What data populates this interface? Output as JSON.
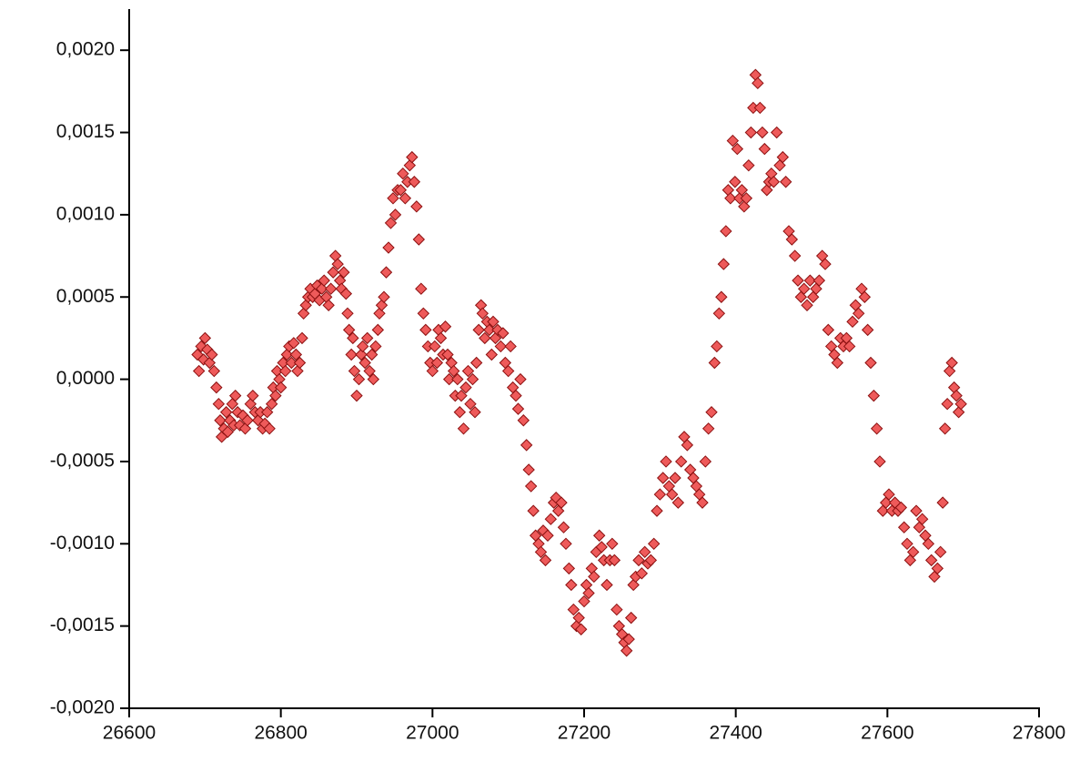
{
  "chart_data": {
    "type": "scatter",
    "marker": "diamond",
    "color": "#ee5a5a",
    "xlim": [
      26600,
      27800
    ],
    "ylim": [
      -0.002,
      0.00225
    ],
    "xticks": [
      26600,
      26800,
      27000,
      27200,
      27400,
      27600,
      27800
    ],
    "yticks": [
      {
        "value": -0.002,
        "label": "-0,0020"
      },
      {
        "value": -0.0015,
        "label": "-0,0015"
      },
      {
        "value": -0.001,
        "label": "-0,0010"
      },
      {
        "value": -0.0005,
        "label": "-0,0005"
      },
      {
        "value": 0,
        "label": "0,0000"
      },
      {
        "value": 0.0005,
        "label": "0,0005"
      },
      {
        "value": 0.001,
        "label": "0,0010"
      },
      {
        "value": 0.0015,
        "label": "0,0015"
      },
      {
        "value": 0.002,
        "label": "0,0020"
      }
    ],
    "grid": false,
    "x": [
      26690,
      26692,
      26695,
      26698,
      26700,
      26703,
      26706,
      26709,
      26712,
      26715,
      26718,
      26720,
      26722,
      26725,
      26728,
      26730,
      26733,
      26736,
      26738,
      26740,
      26743,
      26746,
      26750,
      26753,
      26756,
      26760,
      26763,
      26766,
      26770,
      26773,
      26776,
      26779,
      26782,
      26785,
      26788,
      26790,
      26793,
      26795,
      26798,
      26800,
      26803,
      26806,
      26808,
      26811,
      26814,
      26817,
      26820,
      26822,
      26825,
      26828,
      26830,
      26833,
      26836,
      26839,
      26842,
      26845,
      26848,
      26851,
      26854,
      26857,
      26860,
      26863,
      26866,
      26869,
      26872,
      26875,
      26878,
      26880,
      26883,
      26886,
      26888,
      26890,
      26893,
      26895,
      26897,
      26900,
      26903,
      26906,
      26908,
      26911,
      26914,
      26917,
      26920,
      26922,
      26925,
      26928,
      26930,
      26933,
      26936,
      26939,
      26942,
      26945,
      26948,
      26951,
      26954,
      26958,
      26961,
      26964,
      26967,
      26970,
      26973,
      26976,
      26979,
      26982,
      26985,
      26988,
      26991,
      26994,
      26997,
      27000,
      27003,
      27006,
      27008,
      27011,
      27014,
      27017,
      27020,
      27022,
      27025,
      27028,
      27030,
      27033,
      27036,
      27038,
      27041,
      27044,
      27047,
      27050,
      27053,
      27056,
      27058,
      27061,
      27064,
      27066,
      27069,
      27072,
      27075,
      27078,
      27080,
      27083,
      27086,
      27090,
      27093,
      27096,
      27100,
      27103,
      27106,
      27110,
      27113,
      27116,
      27120,
      27124,
      27127,
      27130,
      27133,
      27136,
      27140,
      27143,
      27146,
      27149,
      27152,
      27156,
      27160,
      27163,
      27166,
      27170,
      27173,
      27176,
      27180,
      27183,
      27186,
      27190,
      27193,
      27196,
      27200,
      27203,
      27206,
      27210,
      27213,
      27216,
      27220,
      27223,
      27226,
      27230,
      27234,
      27237,
      27240,
      27243,
      27246,
      27250,
      27253,
      27256,
      27259,
      27262,
      27265,
      27268,
      27272,
      27276,
      27280,
      27284,
      27288,
      27292,
      27296,
      27300,
      27304,
      27308,
      27312,
      27316,
      27320,
      27324,
      27328,
      27332,
      27336,
      27340,
      27344,
      27348,
      27352,
      27356,
      27360,
      27364,
      27368,
      27372,
      27375,
      27378,
      27381,
      27384,
      27387,
      27390,
      27393,
      27396,
      27399,
      27402,
      27405,
      27408,
      27411,
      27414,
      27417,
      27420,
      27423,
      27426,
      27429,
      27432,
      27435,
      27438,
      27441,
      27444,
      27447,
      27450,
      27454,
      27458,
      27462,
      27466,
      27470,
      27474,
      27478,
      27482,
      27486,
      27490,
      27494,
      27498,
      27502,
      27506,
      27510,
      27514,
      27518,
      27522,
      27526,
      27530,
      27534,
      27538,
      27542,
      27546,
      27550,
      27554,
      27558,
      27562,
      27566,
      27570,
      27574,
      27578,
      27582,
      27586,
      27590,
      27594,
      27598,
      27602,
      27606,
      27610,
      27614,
      27618,
      27622,
      27626,
      27630,
      27634,
      27638,
      27642,
      27646,
      27650,
      27654,
      27658,
      27662,
      27666,
      27670,
      27673,
      27676,
      27679,
      27682,
      27685,
      27688,
      27691,
      27694,
      27697
    ],
    "values": [
      0.00015,
      5e-05,
      0.0002,
      0.00012,
      0.00025,
      0.00018,
      0.0001,
      0.00015,
      5e-05,
      -5e-05,
      -0.00015,
      -0.00025,
      -0.00035,
      -0.0003,
      -0.0002,
      -0.00032,
      -0.00025,
      -0.00015,
      -0.00028,
      -0.0001,
      -0.0002,
      -0.00028,
      -0.00022,
      -0.0003,
      -0.00025,
      -0.00015,
      -0.0001,
      -0.0002,
      -0.00025,
      -0.0002,
      -0.0003,
      -0.00027,
      -0.0002,
      -0.0003,
      -0.00015,
      -5e-05,
      -0.0001,
      5e-05,
      0,
      -5e-05,
      0.0001,
      5e-05,
      0.00015,
      0.0002,
      0.0001,
      0.00022,
      0.00015,
      5e-05,
      0.0001,
      0.00025,
      0.0004,
      0.00045,
      0.0005,
      0.00055,
      0.0005,
      0.00052,
      0.00057,
      0.00048,
      0.00055,
      0.0006,
      0.0005,
      0.00045,
      0.00055,
      0.00065,
      0.00075,
      0.0007,
      0.0006,
      0.00055,
      0.00065,
      0.00052,
      0.0004,
      0.0003,
      0.00015,
      0.00025,
      5e-05,
      -0.0001,
      0,
      0.00015,
      0.0002,
      0.0001,
      0.00025,
      5e-05,
      0.00015,
      0,
      0.0002,
      0.0003,
      0.0004,
      0.00045,
      0.0005,
      0.00065,
      0.0008,
      0.00095,
      0.0011,
      0.001,
      0.00115,
      0.00115,
      0.00125,
      0.0011,
      0.0012,
      0.0013,
      0.00135,
      0.0012,
      0.00105,
      0.00085,
      0.00055,
      0.0004,
      0.0003,
      0.0002,
      0.0001,
      5e-05,
      0.0002,
      0.0001,
      0.0003,
      0.00025,
      0.00015,
      0.00032,
      0.00015,
      0,
      0.0001,
      5e-05,
      -0.0001,
      0,
      -0.0002,
      -0.0001,
      -0.0003,
      -5e-05,
      5e-05,
      -0.00015,
      0,
      -0.0002,
      0.0001,
      0.0003,
      0.00045,
      0.0004,
      0.00025,
      0.00035,
      0.0003,
      0.00015,
      0.00035,
      0.00025,
      0.0003,
      0.0002,
      0.00028,
      0.0001,
      5e-05,
      0.0002,
      -5e-05,
      -0.0001,
      -0.00018,
      0,
      -0.00025,
      -0.0004,
      -0.00055,
      -0.00065,
      -0.0008,
      -0.00095,
      -0.001,
      -0.00105,
      -0.00092,
      -0.0011,
      -0.00095,
      -0.00085,
      -0.00075,
      -0.00072,
      -0.0008,
      -0.00075,
      -0.0009,
      -0.001,
      -0.00115,
      -0.00125,
      -0.0014,
      -0.0015,
      -0.00145,
      -0.00152,
      -0.00135,
      -0.00125,
      -0.0013,
      -0.00115,
      -0.0012,
      -0.00105,
      -0.00095,
      -0.00102,
      -0.0011,
      -0.00125,
      -0.0011,
      -0.001,
      -0.0011,
      -0.0014,
      -0.0015,
      -0.00155,
      -0.0016,
      -0.00165,
      -0.00158,
      -0.00145,
      -0.00125,
      -0.0012,
      -0.0011,
      -0.00118,
      -0.00105,
      -0.00112,
      -0.0011,
      -0.001,
      -0.0008,
      -0.0007,
      -0.0006,
      -0.0005,
      -0.00065,
      -0.0007,
      -0.0006,
      -0.00075,
      -0.0005,
      -0.00035,
      -0.0004,
      -0.00055,
      -0.0006,
      -0.00065,
      -0.0007,
      -0.00075,
      -0.0005,
      -0.0003,
      -0.0002,
      0.0001,
      0.0002,
      0.0004,
      0.0005,
      0.0007,
      0.0009,
      0.00115,
      0.0011,
      0.00145,
      0.0012,
      0.0014,
      0.0011,
      0.00115,
      0.00105,
      0.0011,
      0.0013,
      0.0015,
      0.00165,
      0.00185,
      0.0018,
      0.00165,
      0.0015,
      0.0014,
      0.00115,
      0.0012,
      0.00125,
      0.0012,
      0.0015,
      0.0013,
      0.00135,
      0.0012,
      0.0009,
      0.00085,
      0.00075,
      0.0006,
      0.0005,
      0.00055,
      0.00045,
      0.0006,
      0.0005,
      0.00055,
      0.0006,
      0.00075,
      0.0007,
      0.0003,
      0.0002,
      0.00015,
      0.0001,
      0.00025,
      0.0002,
      0.00025,
      0.0002,
      0.00035,
      0.00045,
      0.0004,
      0.00055,
      0.0005,
      0.0003,
      0.0001,
      -0.0001,
      -0.0003,
      -0.0005,
      -0.0008,
      -0.00075,
      -0.0007,
      -0.0008,
      -0.00075,
      -0.0008,
      -0.00078,
      -0.0009,
      -0.001,
      -0.0011,
      -0.00105,
      -0.0008,
      -0.0009,
      -0.00085,
      -0.00095,
      -0.001,
      -0.0011,
      -0.0012,
      -0.00115,
      -0.00105,
      -0.00075,
      -0.0003,
      -0.00015,
      5e-05,
      0.0001,
      -5e-05,
      -0.0001,
      -0.0002,
      -0.00015
    ]
  }
}
